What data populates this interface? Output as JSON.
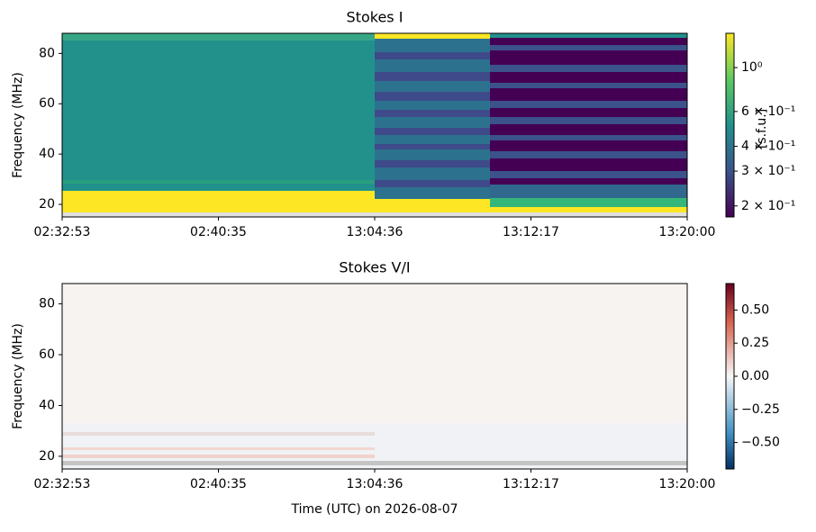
{
  "chart_data": [
    {
      "type": "heatmap",
      "title": "Stokes I",
      "ylabel": "Frequency (MHz)",
      "xlim": [
        0,
        4
      ],
      "xticks": [
        {
          "value": 0,
          "label": "02:32:53"
        },
        {
          "value": 1,
          "label": "02:40:35"
        },
        {
          "value": 2,
          "label": "13:04:36"
        },
        {
          "value": 3,
          "label": "13:12:17"
        },
        {
          "value": 4,
          "label": "13:20:00"
        }
      ],
      "ylim": [
        15,
        88
      ],
      "yticks": [
        20,
        40,
        60,
        80
      ],
      "colormap": "viridis",
      "colorbar_label": "[s.f.u.]",
      "colorbar_log": true,
      "clim": [
        0.176,
        1.49
      ],
      "colorbar_ticks": [
        {
          "value": 1,
          "label": "10⁰"
        },
        {
          "value": 0.6,
          "label": "6 × 10⁻¹"
        },
        {
          "value": 0.4,
          "label": "4 × 10⁻¹"
        },
        {
          "value": 0.3,
          "label": "3 × 10⁻¹"
        },
        {
          "value": 0.2,
          "label": "2 × 10⁻¹"
        }
      ]
    },
    {
      "type": "heatmap",
      "title": "Stokes V/I",
      "ylabel": "Frequency (MHz)",
      "xlabel": "Time (UTC) on 2026-08-07",
      "xlim": [
        0,
        4
      ],
      "xticks": [
        {
          "value": 0,
          "label": "02:32:53"
        },
        {
          "value": 1,
          "label": "02:40:35"
        },
        {
          "value": 2,
          "label": "13:04:36"
        },
        {
          "value": 3,
          "label": "13:12:17"
        },
        {
          "value": 4,
          "label": "13:20:00"
        }
      ],
      "ylim": [
        15,
        88
      ],
      "yticks": [
        20,
        40,
        60,
        80
      ],
      "colormap": "RdBu_r",
      "colorbar_log": false,
      "clim": [
        -0.7,
        0.7
      ],
      "colorbar_ticks": [
        {
          "value": 0.5,
          "label": "0.50"
        },
        {
          "value": 0.25,
          "label": "0.25"
        },
        {
          "value": 0,
          "label": "0.00"
        },
        {
          "value": -0.25,
          "label": "−0.25"
        },
        {
          "value": -0.5,
          "label": "−0.50"
        }
      ]
    }
  ]
}
